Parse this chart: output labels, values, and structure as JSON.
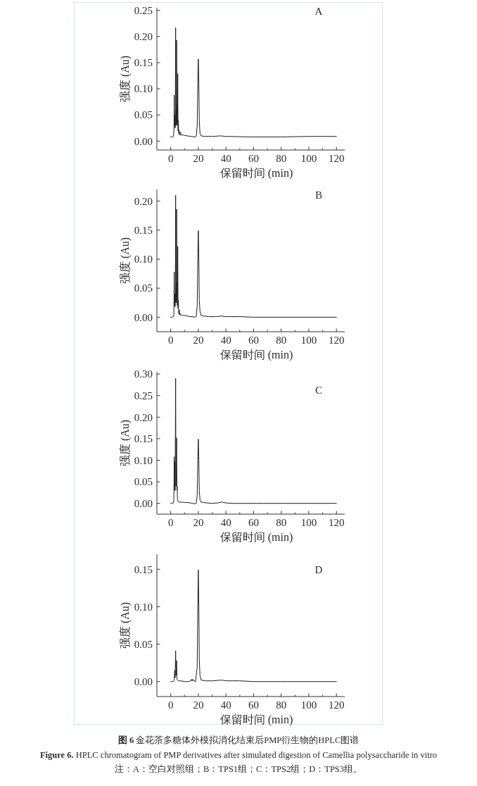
{
  "chart_data": [
    {
      "type": "line",
      "title": "A",
      "xlabel": "保留时间 (min)",
      "ylabel": "强度 (Au)",
      "xlim": [
        -10,
        126
      ],
      "ylim": [
        -0.017,
        0.255
      ],
      "xticks": [
        0,
        {
          "value": 10,
          "label": null
        },
        20,
        {
          "value": 30,
          "label": null
        },
        40,
        {
          "value": 50,
          "label": null
        },
        60,
        {
          "value": 70,
          "label": null
        },
        80,
        {
          "value": 90,
          "label": null
        },
        100,
        {
          "value": 110,
          "label": null
        },
        120
      ],
      "yticks": [
        {
          "value": 0,
          "label": "0.00"
        },
        {
          "value": 0.05,
          "label": "0.05"
        },
        {
          "value": 0.1,
          "label": "0.10"
        },
        {
          "value": 0.15,
          "label": "0.15"
        },
        {
          "value": 0.2,
          "label": "0.20"
        },
        {
          "value": 0.25,
          "label": "0.25"
        }
      ],
      "series": [
        {
          "color": "#1e1e1e",
          "x": [
            0,
            1,
            2,
            2.4,
            2.55,
            2.7,
            2.9,
            3.1,
            3.3,
            3.57,
            3.75,
            3.9,
            4.05,
            4.28,
            4.45,
            4.6,
            4.8,
            5.1,
            5.3,
            5.5,
            5.8,
            6.0,
            6.2,
            6.6,
            7.0,
            7.3,
            8,
            8.5,
            9,
            10,
            12,
            15,
            17,
            18.5,
            19.2,
            19.6,
            20.0,
            20.3,
            20.7,
            21.2,
            22,
            25,
            30,
            36,
            40,
            60,
            80,
            100,
            120
          ],
          "values": [
            0.008,
            0.008,
            0.009,
            0.025,
            0.088,
            0.03,
            0.05,
            0.03,
            0.025,
            0.217,
            0.03,
            0.06,
            0.03,
            0.193,
            0.035,
            0.07,
            0.03,
            0.129,
            0.02,
            0.04,
            0.015,
            0.022,
            0.012,
            0.013,
            0.018,
            0.011,
            0.013,
            0.011,
            0.012,
            0.011,
            0.01,
            0.009,
            0.008,
            0.009,
            0.03,
            0.11,
            0.157,
            0.12,
            0.04,
            0.015,
            0.01,
            0.009,
            0.009,
            0.01,
            0.009,
            0.008,
            0.008,
            0.009,
            0.009
          ]
        }
      ]
    },
    {
      "type": "line",
      "title": "B",
      "xlabel": "保留时间 (min)",
      "ylabel": "强度 (Au)",
      "xlim": [
        -10,
        126
      ],
      "ylim": [
        -0.025,
        0.22
      ],
      "xticks": [
        0,
        {
          "value": 10,
          "label": null
        },
        20,
        {
          "value": 30,
          "label": null
        },
        40,
        {
          "value": 50,
          "label": null
        },
        60,
        {
          "value": 70,
          "label": null
        },
        80,
        {
          "value": 90,
          "label": null
        },
        100,
        {
          "value": 110,
          "label": null
        },
        120
      ],
      "yticks": [
        {
          "value": 0,
          "label": "0.00"
        },
        {
          "value": 0.05,
          "label": "0.05"
        },
        {
          "value": 0.1,
          "label": "0.10"
        },
        {
          "value": 0.15,
          "label": "0.15"
        },
        {
          "value": 0.2,
          "label": "0.20"
        }
      ],
      "series": [
        {
          "color": "#1e1e1e",
          "x": [
            0,
            1,
            2,
            2.3,
            2.55,
            2.75,
            2.95,
            3.15,
            3.35,
            3.57,
            3.75,
            3.9,
            4.05,
            4.28,
            4.45,
            4.6,
            4.8,
            5.1,
            5.3,
            5.5,
            5.8,
            6.0,
            6.2,
            6.5,
            7,
            7.5,
            8,
            9,
            10,
            12,
            14,
            16,
            17.5,
            18.5,
            19.2,
            19.6,
            20.0,
            20.3,
            20.7,
            21.2,
            22,
            24,
            28,
            33,
            37,
            40,
            50,
            60,
            80,
            100,
            120
          ],
          "values": [
            0,
            0,
            0.001,
            0.005,
            0.078,
            0.02,
            0.04,
            0.018,
            0.03,
            0.21,
            0.025,
            0.05,
            0.025,
            0.186,
            0.03,
            0.06,
            0.02,
            0.122,
            0.015,
            0.03,
            0.008,
            0.005,
            0.013,
            0.004,
            0.006,
            0.003,
            0.004,
            0.003,
            0.003,
            0.002,
            0.001,
            0.001,
            0,
            0.001,
            0.02,
            0.1,
            0.149,
            0.11,
            0.03,
            0.01,
            0.003,
            0.002,
            0.001,
            0.001,
            0.002,
            0.001,
            0.001,
            0,
            0,
            0,
            0
          ]
        }
      ]
    },
    {
      "type": "line",
      "title": "C",
      "xlabel": "保留时间 (min)",
      "ylabel": "强度 (Au)",
      "xlim": [
        -10,
        126
      ],
      "ylim": [
        -0.025,
        0.305
      ],
      "xticks": [
        0,
        {
          "value": 10,
          "label": null
        },
        20,
        {
          "value": 30,
          "label": null
        },
        40,
        {
          "value": 50,
          "label": null
        },
        60,
        {
          "value": 70,
          "label": null
        },
        80,
        {
          "value": 90,
          "label": null
        },
        100,
        {
          "value": 110,
          "label": null
        },
        120
      ],
      "yticks": [
        {
          "value": 0,
          "label": "0.00"
        },
        {
          "value": 0.05,
          "label": "0.05"
        },
        {
          "value": 0.1,
          "label": "0.10"
        },
        {
          "value": 0.15,
          "label": "0.15"
        },
        {
          "value": 0.2,
          "label": "0.20"
        },
        {
          "value": 0.25,
          "label": "0.25"
        },
        {
          "value": 0.3,
          "label": "0.30"
        }
      ],
      "series": [
        {
          "color": "#1e1e1e",
          "x": [
            0,
            1,
            2,
            2.3,
            2.55,
            2.8,
            3.0,
            3.2,
            3.57,
            3.8,
            4.0,
            4.28,
            4.5,
            4.7,
            4.9,
            5.2,
            6,
            8,
            10,
            12,
            14,
            16,
            17.5,
            18.5,
            19.2,
            19.6,
            20.0,
            20.3,
            20.7,
            21.2,
            22,
            24,
            26,
            30,
            34,
            37,
            40,
            45,
            50,
            55,
            62,
            70,
            80,
            100,
            120
          ],
          "values": [
            0,
            0,
            0.001,
            0.01,
            0.108,
            0.03,
            0.097,
            0.03,
            0.29,
            0.04,
            0.06,
            0.152,
            0.03,
            0.04,
            0.01,
            0.005,
            0.003,
            0.003,
            0.002,
            0.002,
            0.001,
            0,
            -0.001,
            0,
            0.02,
            0.1,
            0.149,
            0.11,
            0.03,
            0.008,
            0.003,
            0.002,
            0.001,
            0,
            0.001,
            0.003,
            0.001,
            0,
            0,
            0,
            0,
            0,
            0,
            0,
            0
          ]
        }
      ]
    },
    {
      "type": "line",
      "title": "D",
      "xlabel": "保留时间 (min)",
      "ylabel": "强度 (Au)",
      "xlim": [
        -10,
        126
      ],
      "ylim": [
        -0.02,
        0.17
      ],
      "xticks": [
        0,
        {
          "value": 10,
          "label": null
        },
        20,
        {
          "value": 30,
          "label": null
        },
        40,
        {
          "value": 50,
          "label": null
        },
        60,
        {
          "value": 70,
          "label": null
        },
        80,
        {
          "value": 90,
          "label": null
        },
        100,
        {
          "value": 110,
          "label": null
        },
        120
      ],
      "yticks": [
        {
          "value": 0,
          "label": "0.00"
        },
        {
          "value": 0.05,
          "label": "0.05"
        },
        {
          "value": 0.1,
          "label": "0.10"
        },
        {
          "value": 0.15,
          "label": "0.15"
        }
      ],
      "series": [
        {
          "color": "#1e1e1e",
          "x": [
            0,
            1,
            2,
            2.5,
            2.9,
            3.2,
            3.57,
            3.85,
            4.05,
            4.28,
            4.5,
            4.8,
            5.5,
            7,
            10,
            13,
            14.5,
            15,
            15.5,
            16,
            16.5,
            17,
            18,
            19.2,
            19.6,
            20.0,
            20.3,
            20.7,
            21.2,
            22,
            25,
            30,
            37,
            40,
            50,
            60,
            80,
            100,
            120
          ],
          "values": [
            0,
            0,
            0,
            0.002,
            0.015,
            0.005,
            0.041,
            0.008,
            0.012,
            0.028,
            0.004,
            0.002,
            0.001,
            0.001,
            0,
            0,
            0.001,
            0.003,
            0.001,
            0.003,
            0.001,
            0.001,
            0,
            0.02,
            0.1,
            0.149,
            0.11,
            0.03,
            0.008,
            0.002,
            0.001,
            0.001,
            0.002,
            0.001,
            0.001,
            0,
            0,
            0,
            0
          ]
        }
      ],
      "annotations": [
        "图 6 金花茶多糖体外模拟消化结束后PMP衍生物的HPLC图谱",
        "Figure 6. HPLC chromatogram of PMP derivatives after simulated digestion of Camellia polysaccharide in vitro",
        "注：A：空白对照组；B：TPS1组；C：TPS2组；D：TPS3组。"
      ]
    }
  ]
}
